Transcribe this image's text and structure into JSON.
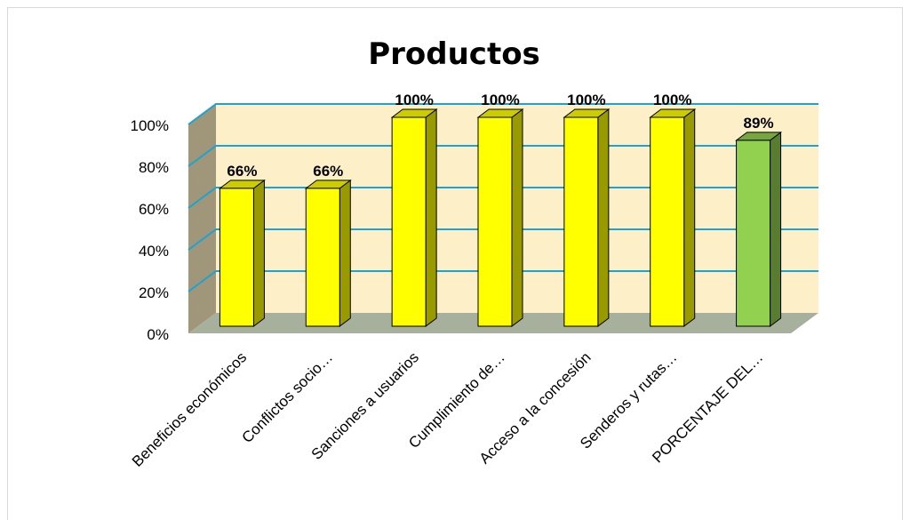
{
  "chart_data": {
    "type": "bar",
    "title": "Productos",
    "categories": [
      "Beneficios económicos",
      "Conflictos socio…",
      "Sanciones a usuarios",
      "Cumplimiento de…",
      "Acceso a la concesión",
      "Senderos y rutas…",
      "PORCENTAJE DEL…"
    ],
    "values": [
      66,
      66,
      100,
      100,
      100,
      100,
      89
    ],
    "data_labels": [
      "66%",
      "66%",
      "100%",
      "100%",
      "100%",
      "100%",
      "89%"
    ],
    "y_ticks": [
      "0%",
      "20%",
      "40%",
      "60%",
      "80%",
      "100%"
    ],
    "ylim": [
      0,
      100
    ],
    "grid": true,
    "legend": "none",
    "bar_colors": [
      "#ffff00",
      "#ffff00",
      "#ffff00",
      "#ffff00",
      "#ffff00",
      "#ffff00",
      "#92d050"
    ],
    "colors": {
      "back_wall": "#fdefc8",
      "side_wall": "#a0967a",
      "floor": "#a6b09c",
      "gridline": "#1aa3d6"
    }
  }
}
